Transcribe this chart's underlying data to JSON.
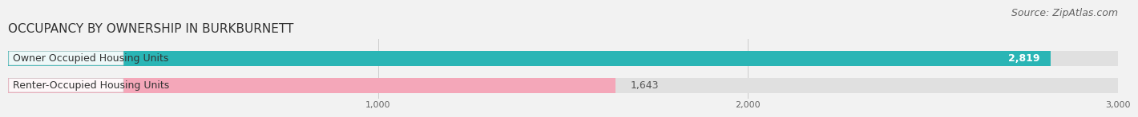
{
  "title": "OCCUPANCY BY OWNERSHIP IN BURKBURNETT",
  "source": "Source: ZipAtlas.com",
  "categories": [
    "Owner Occupied Housing Units",
    "Renter-Occupied Housing Units"
  ],
  "values": [
    2819,
    1643
  ],
  "bar_colors": [
    "#2ab5b5",
    "#f4a7b9"
  ],
  "value_labels": [
    "2,819",
    "1,643"
  ],
  "xlim": [
    0,
    3000
  ],
  "xticks": [
    1000,
    2000,
    3000
  ],
  "xtick_labels": [
    "1,000",
    "2,000",
    "3,000"
  ],
  "background_color": "#f2f2f2",
  "bar_background_color": "#e0e0e0",
  "title_fontsize": 11,
  "source_fontsize": 9,
  "bar_label_fontsize": 9,
  "value_fontsize": 9
}
